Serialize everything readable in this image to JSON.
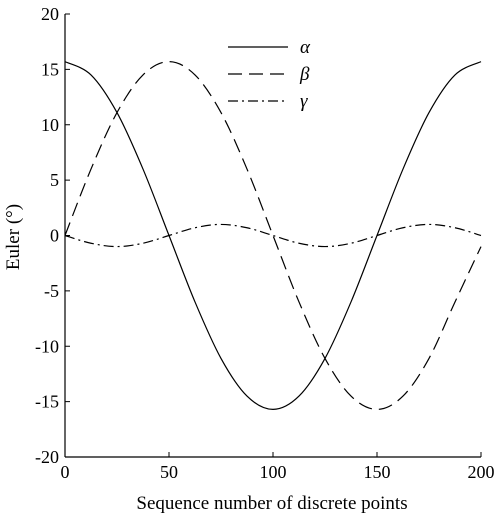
{
  "chart_data": {
    "type": "line",
    "xlabel": "Sequence number of discrete points",
    "ylabel": "Euler (°)",
    "xlim": [
      0,
      200
    ],
    "ylim": [
      -20,
      20
    ],
    "xticks": [
      0,
      50,
      100,
      150,
      200
    ],
    "yticks": [
      20,
      15,
      10,
      5,
      0,
      -5,
      -10,
      -15,
      -20
    ],
    "grid": false,
    "legend_position": "top-center",
    "series": [
      {
        "name": "α",
        "line_style": "solid",
        "color": "#000000",
        "x": [
          0,
          12.5,
          25,
          37.5,
          50,
          62.5,
          75,
          87.5,
          100,
          112.5,
          125,
          137.5,
          150,
          162.5,
          175,
          187.5,
          200
        ],
        "values": [
          15.7,
          14.5,
          11.1,
          6.0,
          0.0,
          -6.0,
          -11.1,
          -14.5,
          -15.7,
          -14.5,
          -11.1,
          -6.0,
          0.0,
          6.0,
          11.1,
          14.5,
          15.7
        ]
      },
      {
        "name": "β",
        "line_style": "dashed",
        "color": "#000000",
        "x": [
          0,
          12.5,
          25,
          37.5,
          50,
          62.5,
          75,
          87.5,
          100,
          112.5,
          125,
          137.5,
          150,
          162.5,
          175,
          187.5,
          200
        ],
        "values": [
          0.0,
          6.0,
          11.1,
          14.5,
          15.7,
          14.5,
          11.1,
          6.0,
          0.0,
          -6.0,
          -11.1,
          -14.5,
          -15.7,
          -14.5,
          -11.1,
          -6.0,
          -1.0
        ]
      },
      {
        "name": "γ",
        "line_style": "dash-dot",
        "color": "#000000",
        "x": [
          0,
          12.5,
          25,
          37.5,
          50,
          62.5,
          75,
          87.5,
          100,
          112.5,
          125,
          137.5,
          150,
          162.5,
          175,
          187.5,
          200
        ],
        "values": [
          0.0,
          -0.7,
          -1.0,
          -0.7,
          0.0,
          0.7,
          1.0,
          0.7,
          0.0,
          -0.7,
          -1.0,
          -0.7,
          0.0,
          0.7,
          1.0,
          0.7,
          0.0
        ]
      }
    ]
  }
}
